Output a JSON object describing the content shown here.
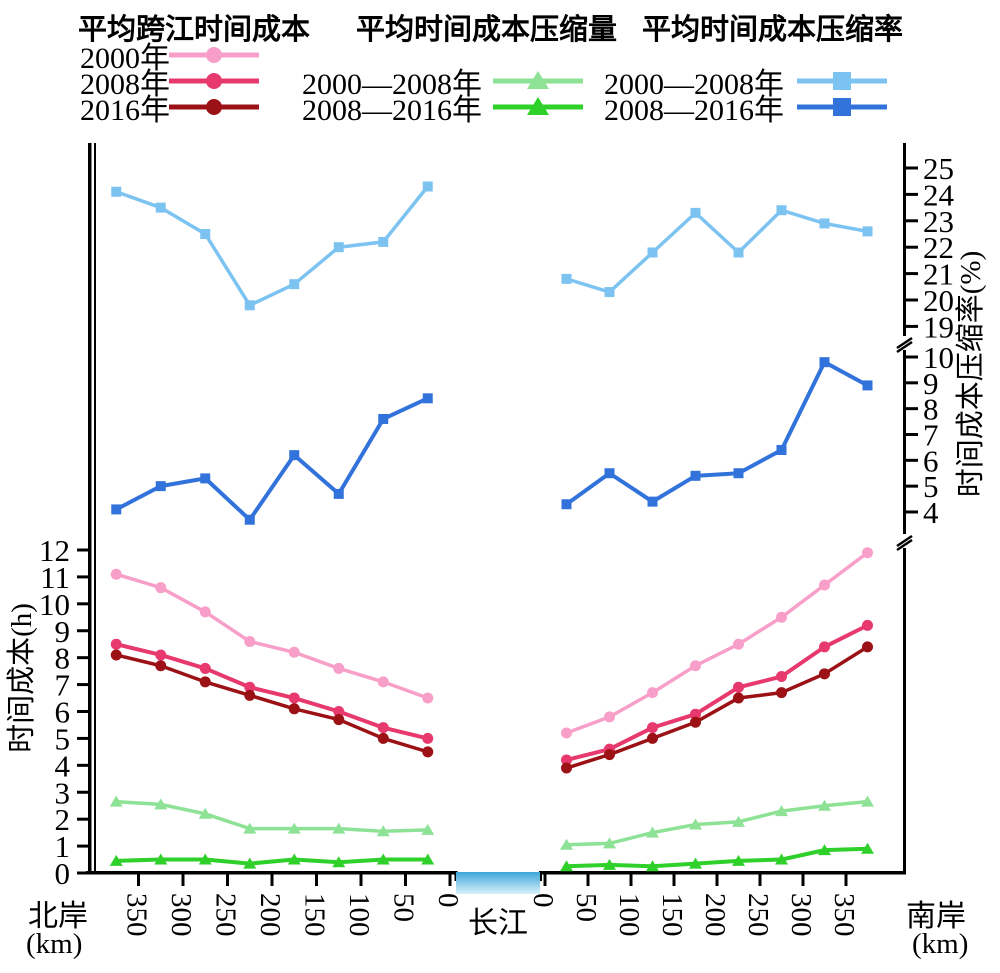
{
  "figure": {
    "legend": {
      "groups": [
        {
          "header": "平均跨江时间成本",
          "items": [
            {
              "label": "2000年",
              "color": "#F79FC8",
              "marker": "circle"
            },
            {
              "label": "2008年",
              "color": "#E7396E",
              "marker": "circle"
            },
            {
              "label": "2016年",
              "color": "#9B1115",
              "marker": "circle"
            }
          ]
        },
        {
          "header": "平均时间成本压缩量",
          "items": [
            {
              "label": "2000—2008年",
              "color": "#8DE296",
              "marker": "triangle"
            },
            {
              "label": "2008—2016年",
              "color": "#2FD02A",
              "marker": "triangle"
            }
          ]
        },
        {
          "header": "平均时间成本压缩率",
          "items": [
            {
              "label": "2000—2008年",
              "color": "#7CC3F1",
              "marker": "square"
            },
            {
              "label": "2008—2016年",
              "color": "#3273DB",
              "marker": "square"
            }
          ]
        }
      ]
    }
  },
  "chart_data": {
    "type": "line",
    "title": "",
    "x_axis": {
      "north_label": "北岸",
      "south_label": "南岸",
      "unit_label": "(km)",
      "river_label": "长江",
      "ticks_km": [
        0,
        50,
        100,
        150,
        200,
        250,
        300,
        350
      ],
      "bin_centers_km": [
        25,
        75,
        125,
        175,
        225,
        275,
        325,
        375
      ]
    },
    "y_left": {
      "label": "时间成本(h)",
      "min": 0,
      "max": 12,
      "ticks": [
        0,
        1,
        2,
        3,
        4,
        5,
        6,
        7,
        8,
        9,
        10,
        11,
        12
      ]
    },
    "y_right": {
      "label": "时间成本压缩率(%)",
      "upper_ticks": [
        19,
        20,
        21,
        22,
        23,
        24,
        25
      ],
      "lower_ticks": [
        4,
        5,
        6,
        7,
        8,
        9,
        10
      ],
      "axis_breaks": true
    },
    "river_colors": {
      "top": "#3EA5DA",
      "bottom": "#D9F3F9"
    },
    "series": [
      {
        "name": "2000年",
        "group": "平均跨江时间成本",
        "axis": "hours",
        "marker": "circle",
        "color": "#F79FC8",
        "width": 3.5,
        "north": [
          6.5,
          7.1,
          7.6,
          8.2,
          8.6,
          9.7,
          10.6,
          11.1
        ],
        "south": [
          5.2,
          5.8,
          6.7,
          7.7,
          8.5,
          9.5,
          10.7,
          11.9
        ]
      },
      {
        "name": "2008年",
        "group": "平均跨江时间成本",
        "axis": "hours",
        "marker": "circle",
        "color": "#E7396E",
        "width": 4,
        "north": [
          5.0,
          5.4,
          6.0,
          6.5,
          6.9,
          7.6,
          8.1,
          8.5
        ],
        "south": [
          4.2,
          4.6,
          5.4,
          5.9,
          6.9,
          7.3,
          8.4,
          9.2
        ]
      },
      {
        "name": "2016年",
        "group": "平均跨江时间成本",
        "axis": "hours",
        "marker": "circle",
        "color": "#9B1115",
        "width": 3.5,
        "north": [
          4.5,
          5.0,
          5.7,
          6.1,
          6.6,
          7.1,
          7.7,
          8.1
        ],
        "south": [
          3.9,
          4.4,
          5.0,
          5.6,
          6.5,
          6.7,
          7.4,
          8.4
        ]
      },
      {
        "name": "2000—2008年",
        "group": "平均时间成本压缩量",
        "axis": "hours",
        "marker": "triangle",
        "color": "#8DE296",
        "width": 3.5,
        "north": [
          1.6,
          1.55,
          1.65,
          1.65,
          1.65,
          2.2,
          2.55,
          2.65
        ],
        "south": [
          1.05,
          1.1,
          1.5,
          1.8,
          1.9,
          2.3,
          2.5,
          2.65
        ]
      },
      {
        "name": "2008—2016年",
        "group": "平均时间成本压缩量",
        "axis": "hours",
        "marker": "triangle",
        "color": "#2FD02A",
        "width": 4,
        "north": [
          0.5,
          0.5,
          0.4,
          0.5,
          0.35,
          0.5,
          0.5,
          0.45
        ],
        "south": [
          0.25,
          0.3,
          0.25,
          0.35,
          0.45,
          0.5,
          0.85,
          0.9
        ]
      },
      {
        "name": "2000—2008年",
        "group": "平均时间成本压缩率",
        "axis": "percent",
        "marker": "square",
        "color": "#7CC3F1",
        "width": 3.5,
        "north": [
          24.3,
          22.2,
          22.0,
          20.6,
          19.8,
          22.5,
          23.5,
          24.1
        ],
        "south": [
          20.8,
          20.3,
          21.8,
          23.3,
          21.8,
          23.4,
          22.9,
          22.6
        ]
      },
      {
        "name": "2008—2016年",
        "group": "平均时间成本压缩率",
        "axis": "percent",
        "marker": "square",
        "color": "#3273DB",
        "width": 4,
        "north": [
          8.4,
          7.6,
          4.7,
          6.2,
          3.7,
          5.3,
          5.0,
          4.1
        ],
        "south": [
          4.3,
          5.5,
          4.4,
          5.4,
          5.5,
          6.4,
          9.8,
          8.9
        ]
      }
    ]
  }
}
